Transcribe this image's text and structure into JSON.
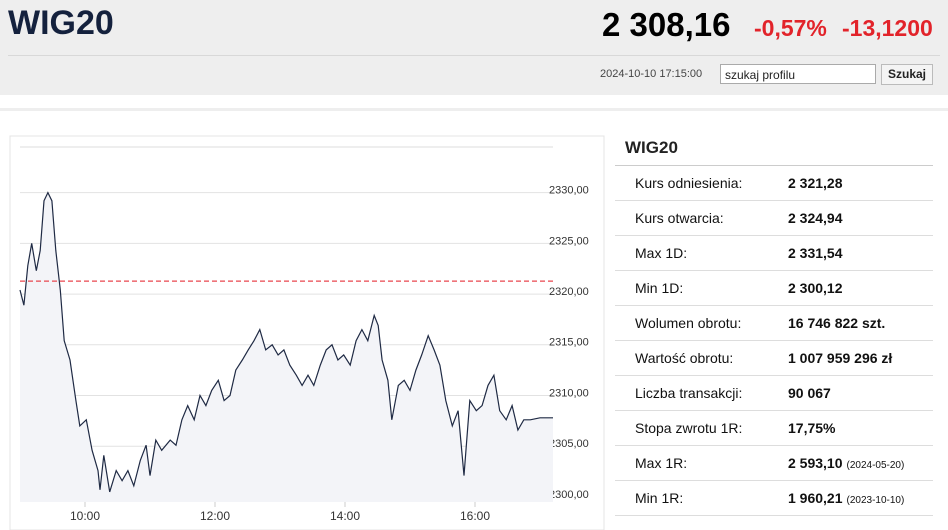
{
  "header": {
    "symbol": "WIG20",
    "price": "2 308,16",
    "change_pct": "-0,57%",
    "change_abs": "-13,1200",
    "datetime": "2024-10-10 17:15:00",
    "search_placeholder": "szukaj profilu",
    "search_button": "Szukaj"
  },
  "chart_data": {
    "type": "line",
    "x": [
      9.0,
      9.06,
      9.12,
      9.18,
      9.25,
      9.31,
      9.37,
      9.43,
      9.49,
      9.55,
      9.62,
      9.68,
      9.77,
      9.86,
      9.92,
      10.02,
      10.11,
      10.2,
      10.23,
      10.29,
      10.38,
      10.48,
      10.57,
      10.66,
      10.75,
      10.85,
      10.94,
      11.0,
      11.09,
      11.18,
      11.31,
      11.4,
      11.49,
      11.58,
      11.68,
      11.77,
      11.86,
      11.95,
      12.05,
      12.14,
      12.23,
      12.32,
      12.42,
      12.51,
      12.6,
      12.69,
      12.78,
      12.88,
      12.97,
      13.06,
      13.15,
      13.25,
      13.34,
      13.43,
      13.52,
      13.62,
      13.71,
      13.8,
      13.89,
      13.98,
      14.08,
      14.17,
      14.26,
      14.35,
      14.45,
      14.51,
      14.57,
      14.66,
      14.72,
      14.82,
      14.91,
      15.0,
      15.09,
      15.18,
      15.28,
      15.37,
      15.46,
      15.55,
      15.65,
      15.74,
      15.83,
      15.92,
      16.02,
      16.11,
      16.2,
      16.29,
      16.38,
      16.48,
      16.57,
      16.66,
      16.75,
      16.85,
      17.0,
      17.2
    ],
    "series": [
      {
        "color": "#1f2a44",
        "values": [
          2320.4,
          2318.9,
          2322.8,
          2325,
          2322.3,
          2324.3,
          2329.2,
          2330,
          2329.2,
          2324.3,
          2320.4,
          2315.4,
          2313.5,
          2309.5,
          2307,
          2307.6,
          2304.6,
          2302.6,
          2300.7,
          2304.1,
          2300.5,
          2302.6,
          2301.6,
          2302.6,
          2301.1,
          2303.6,
          2305.1,
          2302.1,
          2305.6,
          2304.6,
          2305.6,
          2305.1,
          2307.6,
          2309,
          2307.6,
          2310,
          2309,
          2310.5,
          2311.5,
          2309.5,
          2310,
          2312.5,
          2313.5,
          2314.5,
          2315.4,
          2316.5,
          2314.5,
          2315,
          2314,
          2314.5,
          2313,
          2312,
          2311,
          2312,
          2311,
          2313,
          2314.5,
          2315,
          2313.5,
          2314,
          2313,
          2315.4,
          2316.5,
          2315.4,
          2317.9,
          2316.9,
          2313.5,
          2311.5,
          2307.6,
          2311,
          2311.5,
          2310.5,
          2312.5,
          2314,
          2315.9,
          2314.5,
          2313,
          2309.5,
          2307,
          2308.5,
          2302.1,
          2309.5,
          2308.5,
          2309,
          2311,
          2312,
          2308.5,
          2307.6,
          2309,
          2306.6,
          2307.6,
          2307.6,
          2307.8,
          2307.8
        ]
      }
    ],
    "reference_line": 2321.28,
    "reference_color": "#e8474f",
    "xlim": [
      9,
      17.2
    ],
    "xticks": [
      {
        "value": 10,
        "label": "10:00"
      },
      {
        "value": 12,
        "label": "12:00"
      },
      {
        "value": 14,
        "label": "14:00"
      },
      {
        "value": 16,
        "label": "16:00"
      }
    ],
    "ylim": [
      2299.5,
      2334.5
    ],
    "yticks": [
      {
        "value": 2300,
        "label": "2300,00"
      },
      {
        "value": 2305,
        "label": "2305,00"
      },
      {
        "value": 2310,
        "label": "2310,00"
      },
      {
        "value": 2315,
        "label": "2315,00"
      },
      {
        "value": 2320,
        "label": "2320,00"
      },
      {
        "value": 2325,
        "label": "2325,00"
      },
      {
        "value": 2330,
        "label": "2330,00"
      }
    ],
    "grid": true
  },
  "table": {
    "title": "WIG20",
    "rows": [
      {
        "label": "Kurs odniesienia:",
        "value": "2 321,28"
      },
      {
        "label": "Kurs otwarcia:",
        "value": "2 324,94"
      },
      {
        "label": "Max 1D:",
        "value": "2 331,54"
      },
      {
        "label": "Min 1D:",
        "value": "2 300,12"
      },
      {
        "label": "Wolumen obrotu:",
        "value": "16 746 822 szt."
      },
      {
        "label": "Wartość obrotu:",
        "value": "1 007 959 296 zł"
      },
      {
        "label": "Liczba transakcji:",
        "value": "90 067"
      },
      {
        "label": "Stopa zwrotu 1R:",
        "value": "17,75%"
      },
      {
        "label": "Max 1R:",
        "value": "2 593,10",
        "date": "(2024-05-20)"
      },
      {
        "label": "Min 1R:",
        "value": "1 960,21",
        "date": "(2023-10-10)"
      }
    ]
  }
}
